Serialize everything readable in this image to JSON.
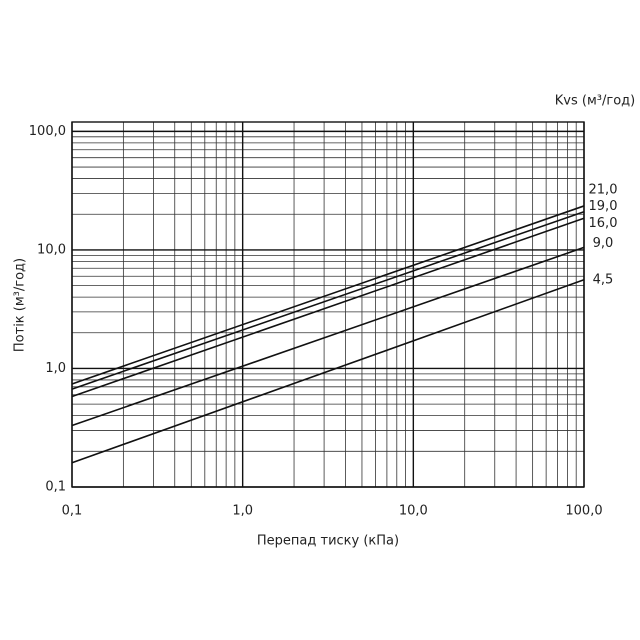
{
  "chart_data": {
    "type": "line",
    "x_label": "Перепад тиску (кПа)",
    "y_label": "Потік (м³/год)",
    "legend_title": "Kvs (м³/год)",
    "log_x": true,
    "log_y": true,
    "grid": true,
    "color": "#111111",
    "xlim": [
      0.1,
      100
    ],
    "ylim": [
      0.1,
      120
    ],
    "xticks": [
      {
        "value": 0.1,
        "label": "0,1"
      },
      {
        "value": 1,
        "label": "1,0"
      },
      {
        "value": 10,
        "label": "10,0"
      },
      {
        "value": 100,
        "label": "100,0"
      }
    ],
    "yticks": [
      {
        "value": 0.1,
        "label": "0,1"
      },
      {
        "value": 1,
        "label": "1,0"
      },
      {
        "value": 10,
        "label": "10,0"
      },
      {
        "value": 100,
        "label": "100,0"
      }
    ],
    "xminorticks": [
      0.2,
      0.3,
      0.4,
      0.5,
      0.6,
      0.7,
      0.8,
      0.9,
      2,
      3,
      4,
      5,
      6,
      7,
      8,
      9,
      20,
      30,
      40,
      50,
      60,
      70,
      80,
      90
    ],
    "yminorticks": [
      0.2,
      0.3,
      0.4,
      0.5,
      0.6,
      0.7,
      0.8,
      0.9,
      2,
      3,
      4,
      5,
      6,
      7,
      8,
      9,
      20,
      30,
      40,
      50,
      60,
      70,
      80,
      90
    ],
    "x": [
      0.1,
      100
    ],
    "series": [
      {
        "name": "21,0",
        "values": [
          0.74,
          23.5
        ]
      },
      {
        "name": "19,0",
        "values": [
          0.67,
          21
        ]
      },
      {
        "name": "16,0",
        "values": [
          0.58,
          18.5
        ]
      },
      {
        "name": "9,0",
        "values": [
          0.33,
          10.5
        ]
      },
      {
        "name": "4,5",
        "values": [
          0.16,
          5.6
        ]
      }
    ]
  }
}
